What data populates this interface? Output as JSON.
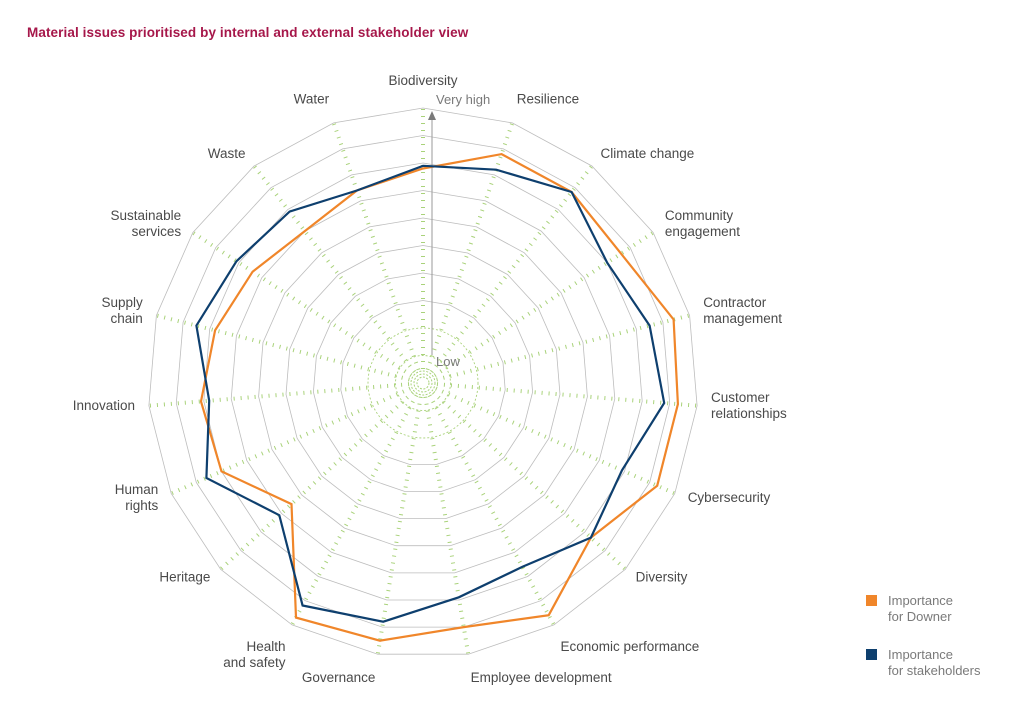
{
  "chart_data": {
    "type": "radar",
    "title": "Material issues prioritised by internal and external stakeholder view",
    "scale": {
      "max_label": "Very high",
      "min_label": "Low",
      "range": [
        0,
        1
      ]
    },
    "categories": [
      [
        "Biodiversity"
      ],
      [
        "Resilience"
      ],
      [
        "Climate change"
      ],
      [
        "Community",
        "engagement"
      ],
      [
        "Contractor",
        "management"
      ],
      [
        "Customer",
        "relationships"
      ],
      [
        "Cybersecurity"
      ],
      [
        "Diversity"
      ],
      [
        "Economic performance"
      ],
      [
        "Employee development"
      ],
      [
        "Governance"
      ],
      [
        "Health",
        "and safety"
      ],
      [
        "Heritage"
      ],
      [
        "Human",
        "rights"
      ],
      [
        "Innovation"
      ],
      [
        "Supply",
        "chain"
      ],
      [
        "Sustainable",
        "services"
      ],
      [
        "Waste"
      ],
      [
        "Water"
      ]
    ],
    "series": [
      {
        "name": "Importance for Downer",
        "legend_lines": [
          "Importance",
          "for Downer"
        ],
        "color": "#f0862a",
        "values": [
          0.78,
          0.88,
          0.88,
          0.86,
          0.94,
          0.93,
          0.93,
          0.83,
          0.96,
          0.9,
          0.95,
          0.97,
          0.65,
          0.8,
          0.81,
          0.78,
          0.74,
          0.7,
          0.74
        ]
      },
      {
        "name": "Importance for stakeholders",
        "legend_lines": [
          "Importance",
          "for stakeholders"
        ],
        "color": "#0e3f6e",
        "values": [
          0.79,
          0.82,
          0.88,
          0.8,
          0.85,
          0.88,
          0.79,
          0.83,
          0.76,
          0.79,
          0.88,
          0.92,
          0.71,
          0.86,
          0.78,
          0.85,
          0.81,
          0.79,
          0.74
        ]
      }
    ],
    "grid": true,
    "legend_position": "bottom-right"
  }
}
